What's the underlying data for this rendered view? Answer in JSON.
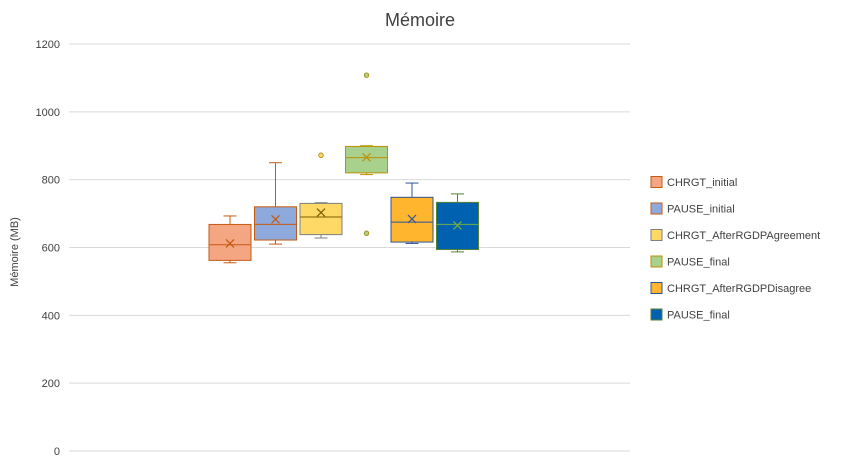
{
  "chart_data": {
    "type": "box",
    "title": "Mémoire",
    "ylabel": "Mémoire (MB)",
    "xlabel": "",
    "ylim": [
      0,
      1200
    ],
    "yticks": [
      0,
      200,
      400,
      600,
      800,
      1000,
      1200
    ],
    "grid": true,
    "legend_position": "right",
    "series": [
      {
        "name": "CHRGT_initial",
        "color": "#F4A582",
        "edge": "#C55A11",
        "median_color": "#C55A11",
        "min": 555,
        "q1": 562,
        "median": 608,
        "q3": 668,
        "max": 693,
        "mean": 612,
        "outliers": []
      },
      {
        "name": "PAUSE_initial",
        "color": "#8EA9DB",
        "edge": "#C55A11",
        "median_color": "#C55A11",
        "min": 610,
        "q1": 622,
        "median": 668,
        "q3": 720,
        "max": 850,
        "mean": 683,
        "outliers": []
      },
      {
        "name": "CHRGT_AfterRGDPAgreement",
        "color": "#FFD966",
        "edge": "#7F7F7F",
        "median_color": "#7F6000",
        "min": 628,
        "q1": 638,
        "median": 690,
        "q3": 730,
        "max": 732,
        "mean": 703,
        "outliers": [
          872
        ]
      },
      {
        "name": "PAUSE_final",
        "color": "#A9D18E",
        "edge": "#BF9000",
        "median_color": "#BF9000",
        "min": 815,
        "q1": 820,
        "median": 865,
        "q3": 898,
        "max": 900,
        "mean": 866,
        "outliers": [
          642,
          1108
        ]
      },
      {
        "name": "CHRGT_AfterRGDPDisagree",
        "color": "#FFB52E",
        "edge": "#2F5597",
        "median_color": "#2F5597",
        "min": 612,
        "q1": 616,
        "median": 675,
        "q3": 748,
        "max": 790,
        "mean": 684,
        "outliers": []
      },
      {
        "name": "PAUSE_final",
        "color": "#0061B0",
        "edge": "#548235",
        "median_color": "#70AD47",
        "min": 587,
        "q1": 594,
        "median": 668,
        "q3": 733,
        "max": 758,
        "mean": 665,
        "outliers": []
      }
    ]
  }
}
